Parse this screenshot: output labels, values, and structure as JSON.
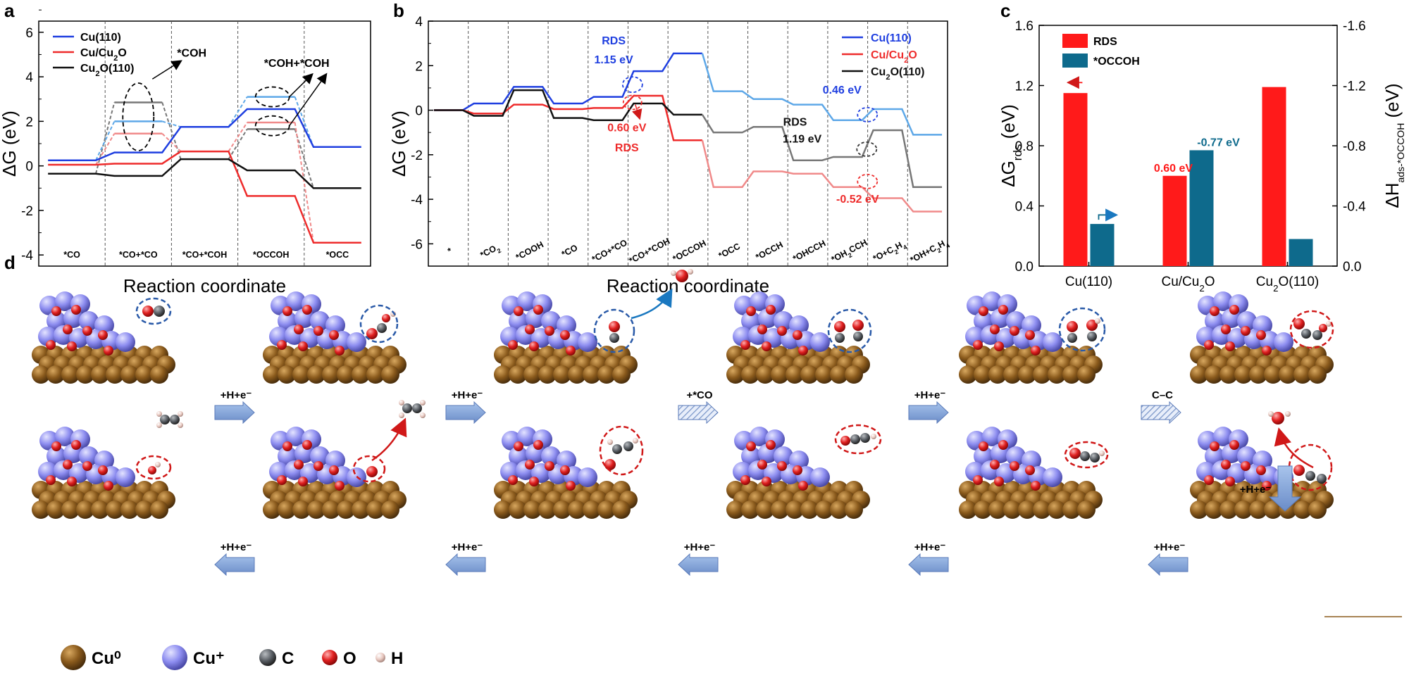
{
  "chart_data": [
    {
      "panel": "a",
      "type": "line",
      "ylabel": "ΔG (eV)",
      "xlabel": "Reaction coordinate",
      "ylim": [
        -4.5,
        6.5
      ],
      "yticks": [
        -4,
        -2,
        0,
        2,
        4,
        6
      ],
      "steps": [
        "*CO",
        "*CO+*CO",
        "*CO+*COH",
        "*OCCOH",
        "*OCC"
      ],
      "series": [
        {
          "name": "Cu(110)",
          "color": "#1f3fe0",
          "values": [
            0.25,
            0.6,
            1.75,
            2.55,
            0.85
          ]
        },
        {
          "name": "Cu/Cu2O",
          "color": "#ee2b2b",
          "values": [
            0.05,
            0.1,
            0.65,
            -1.35,
            -3.45
          ]
        },
        {
          "name": "Cu2O(110)",
          "color": "#111111",
          "values": [
            -0.35,
            -0.45,
            0.3,
            -0.2,
            -1.0
          ]
        }
      ],
      "branches": [
        {
          "name": "Cu2O(110)",
          "color": "#777777",
          "from": [
            0,
            -0.35
          ],
          "to": [
            1,
            2.85
          ],
          "then": [
            2,
            0.3
          ]
        },
        {
          "name": "Cu/Cu2O",
          "color": "#f08a8a",
          "from": [
            0,
            0.05
          ],
          "to": [
            1,
            1.45
          ],
          "then": [
            2,
            0.65
          ]
        },
        {
          "name": "Cu(110)",
          "color": "#5ea8e8",
          "from": [
            0,
            0.25
          ],
          "to": [
            1,
            2.0
          ],
          "then": [
            2,
            1.75
          ]
        },
        {
          "name": "Cu2O(110)",
          "color": "#777777",
          "from": [
            2,
            0.3
          ],
          "to": [
            3,
            1.65
          ],
          "then": [
            4,
            -1.0
          ]
        },
        {
          "name": "Cu/Cu2O",
          "color": "#f08a8a",
          "from": [
            2,
            0.65
          ],
          "to": [
            3,
            1.95
          ],
          "then": [
            4,
            -3.45
          ]
        },
        {
          "name": "Cu(110)",
          "color": "#5ea8e8",
          "from": [
            2,
            1.75
          ],
          "to": [
            3,
            3.1
          ],
          "then": [
            4,
            0.85
          ]
        }
      ],
      "annotations": [
        "*COH",
        "*COH+*COH"
      ],
      "legend_pos": "top-left"
    },
    {
      "panel": "b",
      "type": "line",
      "ylabel": "ΔG (eV)",
      "xlabel": "Reaction coordinate",
      "ylim": [
        -7,
        4
      ],
      "yticks": [
        -6,
        -4,
        -2,
        0,
        2,
        4
      ],
      "steps": [
        "*",
        "*CO2",
        "*COOH",
        "*CO",
        "*CO+*CO",
        "*CO+*COH",
        "*OCCOH",
        "*OCC",
        "*OCCH",
        "*OHCCH",
        "*OH2CCH",
        "*O+C2H4",
        "*OH+C2H4"
      ],
      "series": [
        {
          "name": "Cu(110)",
          "color": "#1f3fe0",
          "values": [
            0,
            0.3,
            1.05,
            0.3,
            0.6,
            1.75,
            2.55,
            0.85,
            0.5,
            0.25,
            -0.45,
            0.05,
            -1.1
          ]
        },
        {
          "name": "Cu/Cu2O",
          "color": "#ee2b2b",
          "values": [
            0,
            -0.15,
            0.25,
            0.05,
            0.1,
            0.65,
            -1.35,
            -3.45,
            -2.75,
            -2.85,
            -3.45,
            -3.95,
            -4.55
          ]
        },
        {
          "name": "Cu2O(110)",
          "color": "#111111",
          "values": [
            0,
            -0.25,
            0.9,
            -0.35,
            -0.45,
            0.3,
            -0.2,
            -1.0,
            -0.75,
            -2.25,
            -2.1,
            -0.9,
            -3.45
          ]
        }
      ],
      "annotations": [
        {
          "text": "RDS",
          "color": "#1f3fe0"
        },
        {
          "text": "1.15 eV",
          "color": "#1f3fe0"
        },
        {
          "text": "0.60 eV",
          "color": "#ee2b2b"
        },
        {
          "text": "RDS",
          "color": "#ee2b2b"
        },
        {
          "text": "0.46 eV",
          "color": "#1f3fe0"
        },
        {
          "text": "RDS",
          "color": "#111111"
        },
        {
          "text": "1.19 eV",
          "color": "#111111"
        },
        {
          "text": "-0.52 eV",
          "color": "#ee2b2b"
        }
      ],
      "legend_pos": "top-right"
    },
    {
      "panel": "c",
      "type": "bar",
      "categories": [
        "Cu(110)",
        "Cu/Cu2O",
        "Cu2O(110)"
      ],
      "series": [
        {
          "name": "RDS",
          "color": "#ff1a1a",
          "axis": "left",
          "values": [
            1.15,
            0.6,
            1.19
          ]
        },
        {
          "name": "*OCCOH",
          "color": "#0e6a8c",
          "axis": "right",
          "values": [
            -0.28,
            -0.77,
            -0.18
          ]
        }
      ],
      "ylabel_left": "ΔGrds (eV)",
      "ylabel_right": "ΔHads-*OCCOH (eV)",
      "ylim_left": [
        0,
        1.6
      ],
      "ylim_right": [
        0,
        -1.6
      ],
      "yticks_left": [
        "0.0",
        "0.4",
        "0.8",
        "1.2",
        "1.6"
      ],
      "yticks_right": [
        "0.0",
        "-0.4",
        "-0.8",
        "-1.2",
        "-1.6"
      ],
      "data_labels": [
        "0.60 eV",
        "-0.77 eV"
      ],
      "legend_pos": "top-left"
    }
  ],
  "panel_d": {
    "letter": "d",
    "top_row_steps": [
      "+H+e⁻",
      "+H+e⁻",
      "+*CO",
      "+H+e⁻",
      "C–C"
    ],
    "down_step": "+H+e⁻",
    "bottom_row_steps": [
      "+H+e⁻",
      "+H+e⁻",
      "+H+e⁻",
      "+H+e⁻",
      "+H+e⁻"
    ],
    "key": [
      {
        "label": "Cu⁰",
        "color": "#8a5a1c"
      },
      {
        "label": "Cu⁺",
        "color": "#8d8df0"
      },
      {
        "label": "C",
        "color": "#555a60"
      },
      {
        "label": "O",
        "color": "#e02020"
      },
      {
        "label": "H",
        "color": "#e8c8c0"
      }
    ]
  },
  "panel_letters": {
    "a": "a",
    "b": "b",
    "c": "c"
  },
  "legend_a": [
    "Cu(110)",
    "Cu/Cu2O",
    "Cu2O(110)"
  ],
  "legend_b": [
    "Cu(110)",
    "Cu/Cu2O",
    "Cu2O(110)"
  ],
  "legend_c": [
    "RDS",
    "*OCCOH"
  ]
}
